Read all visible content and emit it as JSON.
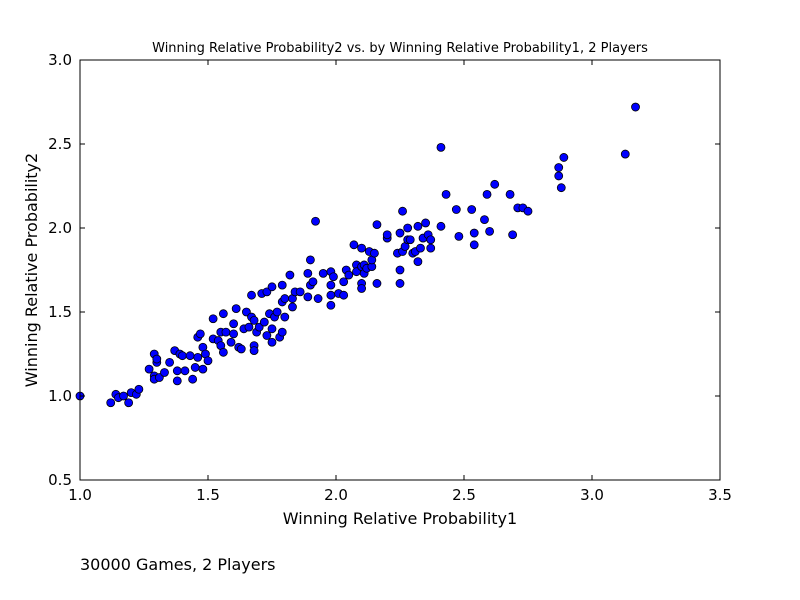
{
  "chart_data": {
    "type": "scatter",
    "title": "Winning Relative Probability2 vs. by Winning Relative Probability1, 2 Players",
    "xlabel": "Winning Relative Probability1",
    "ylabel": "Winning Relative Probability2",
    "xlim": [
      1.0,
      3.5
    ],
    "ylim": [
      0.5,
      3.0
    ],
    "xticks": [
      "1.0",
      "1.5",
      "2.0",
      "2.5",
      "3.0",
      "3.5"
    ],
    "yticks": [
      "0.5",
      "1.0",
      "1.5",
      "2.0",
      "2.5",
      "3.0"
    ],
    "grid": false,
    "marker_color": "#0000ff",
    "marker_edge_color": "#000000",
    "points": [
      [
        1.0,
        1.0
      ],
      [
        1.12,
        0.96
      ],
      [
        1.14,
        1.01
      ],
      [
        1.15,
        0.99
      ],
      [
        1.17,
        1.0
      ],
      [
        1.19,
        0.96
      ],
      [
        1.2,
        1.02
      ],
      [
        1.22,
        1.01
      ],
      [
        1.23,
        1.04
      ],
      [
        1.27,
        1.16
      ],
      [
        1.29,
        1.25
      ],
      [
        1.29,
        1.12
      ],
      [
        1.29,
        1.1
      ],
      [
        1.3,
        1.2
      ],
      [
        1.3,
        1.22
      ],
      [
        1.31,
        1.11
      ],
      [
        1.33,
        1.14
      ],
      [
        1.35,
        1.2
      ],
      [
        1.37,
        1.27
      ],
      [
        1.38,
        1.15
      ],
      [
        1.38,
        1.09
      ],
      [
        1.39,
        1.25
      ],
      [
        1.4,
        1.24
      ],
      [
        1.41,
        1.15
      ],
      [
        1.43,
        1.24
      ],
      [
        1.44,
        1.1
      ],
      [
        1.45,
        1.17
      ],
      [
        1.46,
        1.35
      ],
      [
        1.46,
        1.23
      ],
      [
        1.47,
        1.37
      ],
      [
        1.48,
        1.29
      ],
      [
        1.48,
        1.16
      ],
      [
        1.49,
        1.25
      ],
      [
        1.5,
        1.21
      ],
      [
        1.52,
        1.46
      ],
      [
        1.52,
        1.34
      ],
      [
        1.54,
        1.33
      ],
      [
        1.55,
        1.38
      ],
      [
        1.55,
        1.3
      ],
      [
        1.56,
        1.26
      ],
      [
        1.56,
        1.49
      ],
      [
        1.57,
        1.38
      ],
      [
        1.59,
        1.32
      ],
      [
        1.6,
        1.37
      ],
      [
        1.6,
        1.43
      ],
      [
        1.61,
        1.52
      ],
      [
        1.62,
        1.29
      ],
      [
        1.63,
        1.28
      ],
      [
        1.64,
        1.4
      ],
      [
        1.65,
        1.5
      ],
      [
        1.66,
        1.41
      ],
      [
        1.67,
        1.6
      ],
      [
        1.67,
        1.47
      ],
      [
        1.68,
        1.45
      ],
      [
        1.68,
        1.3
      ],
      [
        1.68,
        1.27
      ],
      [
        1.69,
        1.38
      ],
      [
        1.7,
        1.41
      ],
      [
        1.71,
        1.61
      ],
      [
        1.72,
        1.44
      ],
      [
        1.73,
        1.62
      ],
      [
        1.73,
        1.36
      ],
      [
        1.74,
        1.49
      ],
      [
        1.75,
        1.65
      ],
      [
        1.75,
        1.4
      ],
      [
        1.75,
        1.32
      ],
      [
        1.76,
        1.47
      ],
      [
        1.77,
        1.5
      ],
      [
        1.78,
        1.35
      ],
      [
        1.79,
        1.38
      ],
      [
        1.79,
        1.56
      ],
      [
        1.79,
        1.66
      ],
      [
        1.8,
        1.58
      ],
      [
        1.8,
        1.47
      ],
      [
        1.82,
        1.72
      ],
      [
        1.83,
        1.53
      ],
      [
        1.83,
        1.58
      ],
      [
        1.84,
        1.62
      ],
      [
        1.86,
        1.62
      ],
      [
        1.89,
        1.73
      ],
      [
        1.89,
        1.59
      ],
      [
        1.9,
        1.81
      ],
      [
        1.9,
        1.66
      ],
      [
        1.91,
        1.68
      ],
      [
        1.92,
        2.04
      ],
      [
        1.93,
        1.58
      ],
      [
        1.95,
        1.73
      ],
      [
        1.98,
        1.6
      ],
      [
        1.98,
        1.54
      ],
      [
        1.98,
        1.66
      ],
      [
        1.98,
        1.74
      ],
      [
        1.99,
        1.71
      ],
      [
        2.01,
        1.61
      ],
      [
        2.03,
        1.6
      ],
      [
        2.03,
        1.68
      ],
      [
        2.04,
        1.75
      ],
      [
        2.05,
        1.72
      ],
      [
        2.07,
        1.9
      ],
      [
        2.08,
        1.78
      ],
      [
        2.08,
        1.74
      ],
      [
        2.1,
        1.67
      ],
      [
        2.1,
        1.64
      ],
      [
        2.1,
        1.77
      ],
      [
        2.1,
        1.88
      ],
      [
        2.11,
        1.78
      ],
      [
        2.11,
        1.73
      ],
      [
        2.12,
        1.76
      ],
      [
        2.13,
        1.86
      ],
      [
        2.14,
        1.77
      ],
      [
        2.14,
        1.81
      ],
      [
        2.15,
        1.85
      ],
      [
        2.16,
        1.67
      ],
      [
        2.16,
        2.02
      ],
      [
        2.2,
        1.94
      ],
      [
        2.2,
        1.96
      ],
      [
        2.24,
        1.85
      ],
      [
        2.25,
        1.97
      ],
      [
        2.25,
        1.75
      ],
      [
        2.25,
        1.67
      ],
      [
        2.26,
        2.1
      ],
      [
        2.26,
        1.86
      ],
      [
        2.27,
        1.89
      ],
      [
        2.28,
        1.93
      ],
      [
        2.28,
        2.0
      ],
      [
        2.29,
        1.93
      ],
      [
        2.3,
        1.85
      ],
      [
        2.31,
        1.86
      ],
      [
        2.32,
        2.01
      ],
      [
        2.32,
        1.8
      ],
      [
        2.33,
        1.88
      ],
      [
        2.34,
        1.94
      ],
      [
        2.35,
        2.03
      ],
      [
        2.36,
        1.96
      ],
      [
        2.37,
        1.88
      ],
      [
        2.37,
        1.93
      ],
      [
        2.41,
        2.01
      ],
      [
        2.41,
        2.48
      ],
      [
        2.43,
        2.2
      ],
      [
        2.47,
        2.11
      ],
      [
        2.48,
        1.95
      ],
      [
        2.53,
        2.11
      ],
      [
        2.54,
        1.97
      ],
      [
        2.54,
        1.9
      ],
      [
        2.58,
        2.05
      ],
      [
        2.59,
        2.2
      ],
      [
        2.6,
        1.98
      ],
      [
        2.62,
        2.26
      ],
      [
        2.68,
        2.2
      ],
      [
        2.69,
        1.96
      ],
      [
        2.71,
        2.12
      ],
      [
        2.73,
        2.12
      ],
      [
        2.75,
        2.1
      ],
      [
        2.87,
        2.31
      ],
      [
        2.87,
        2.36
      ],
      [
        2.88,
        2.24
      ],
      [
        2.89,
        2.42
      ],
      [
        3.13,
        2.44
      ],
      [
        3.17,
        2.72
      ]
    ]
  },
  "caption": "30000 Games,  2 Players"
}
